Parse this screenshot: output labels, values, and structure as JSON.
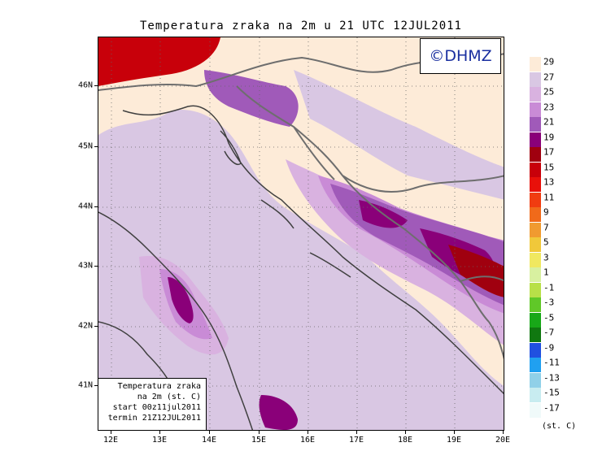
{
  "title": "Temperatura zraka na 2m u 21 UTC 12JUL2011",
  "logo_text": "©DHMZ",
  "info_box": {
    "line1": "Temperatura zraka",
    "line2": "na 2m (st. C)",
    "line3": "start 00z11jul2011",
    "line4": "termin 21Z12JUL2011"
  },
  "lat_labels": [
    "46N",
    "45N",
    "44N",
    "43N",
    "42N",
    "41N"
  ],
  "lon_labels": [
    "12E",
    "13E",
    "14E",
    "15E",
    "16E",
    "17E",
    "18E",
    "19E",
    "20E"
  ],
  "legend": {
    "unit": "(st. C)",
    "labels": [
      "29",
      "27",
      "25",
      "23",
      "21",
      "19",
      "17",
      "15",
      "13",
      "11",
      "9",
      "7",
      "5",
      "3",
      "1",
      "-1",
      "-3",
      "-5",
      "-7",
      "-9",
      "-11",
      "-13",
      "-15",
      "-17"
    ],
    "colors": [
      "#fdebd8",
      "#d9c7e3",
      "#d9b2e0",
      "#c98bd6",
      "#a05ab9",
      "#8a0079",
      "#a0000f",
      "#c8000a",
      "#e8100a",
      "#f03c10",
      "#f06a1a",
      "#f09a30",
      "#f0c83a",
      "#f0e860",
      "#d8f0a0",
      "#b8e048",
      "#60c828",
      "#18a818",
      "#107810",
      "#2050e0",
      "#20a0f0",
      "#90d0e8",
      "#c8ecf0",
      "#f0fafa"
    ]
  },
  "map_colors": {
    "background": "#fdebd8",
    "cool_band": "#d9c7e3",
    "mid_band": "#d9b2e0",
    "warm_band": "#c98bd6",
    "hot_band": "#a05ab9",
    "maroon": "#8a0079",
    "darkred": "#a0000f",
    "red": "#c8000a",
    "boundary": "#6e6e6e",
    "coast": "#404040"
  }
}
